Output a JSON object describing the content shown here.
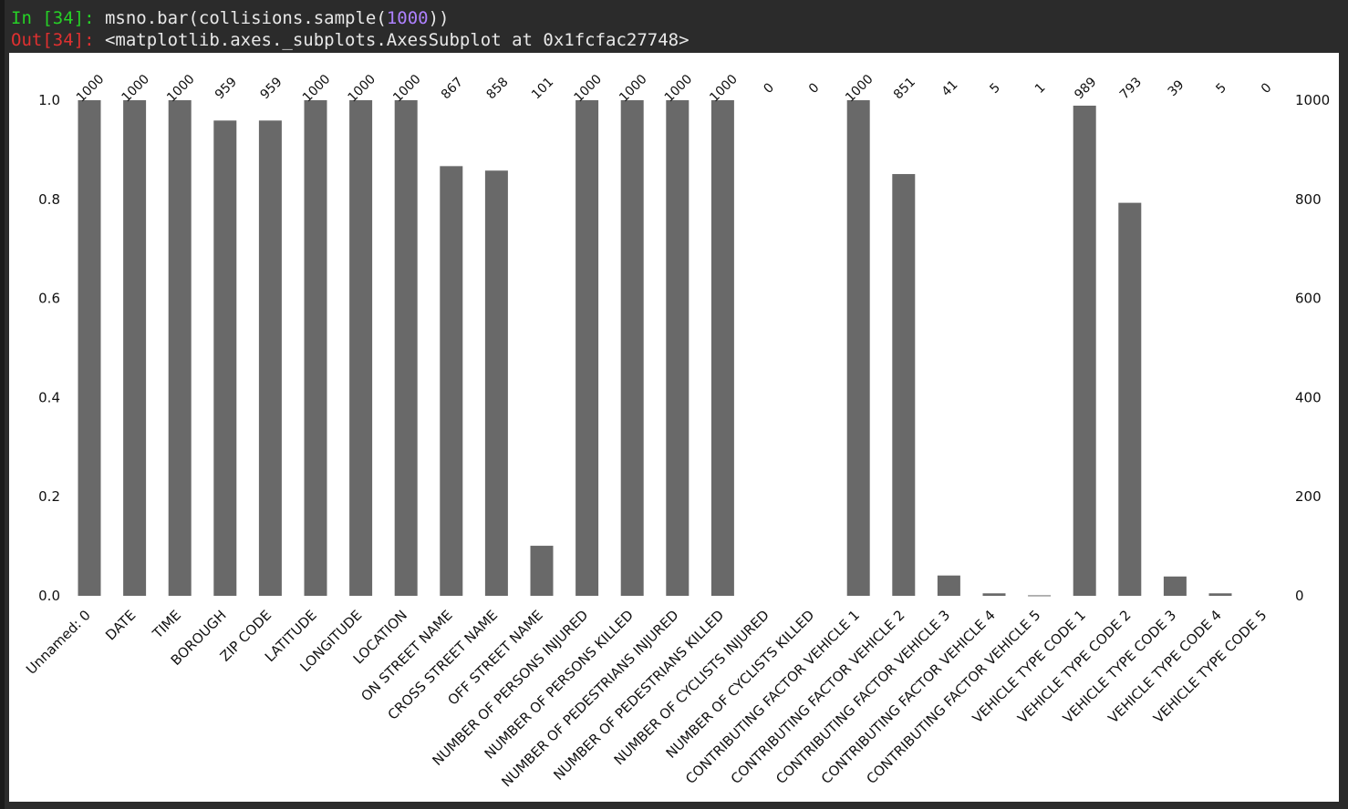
{
  "console": {
    "in_prompt": "In [34]:",
    "in_code_prefix": " msno.bar(collisions.sample(",
    "in_code_number": "1000",
    "in_code_suffix": "))",
    "out_prompt": "Out[34]:",
    "out_text": " <matplotlib.axes._subplots.AxesSubplot at 0x1fcfac27748>"
  },
  "colors": {
    "bar": "#696969",
    "background": "#2b2b2b",
    "prompt_in": "#26d126",
    "prompt_out": "#e03030",
    "number_literal": "#ae81ff"
  },
  "chart_data": {
    "type": "bar",
    "categories": [
      "Unnamed: 0",
      "DATE",
      "TIME",
      "BOROUGH",
      "ZIP CODE",
      "LATITUDE",
      "LONGITUDE",
      "LOCATION",
      "ON STREET NAME",
      "CROSS STREET NAME",
      "OFF STREET NAME",
      "NUMBER OF PERSONS INJURED",
      "NUMBER OF PERSONS KILLED",
      "NUMBER OF PEDESTRIANS INJURED",
      "NUMBER OF PEDESTRIANS KILLED",
      "NUMBER OF CYCLISTS INJURED",
      "NUMBER OF CYCLISTS KILLED",
      "CONTRIBUTING FACTOR VEHICLE 1",
      "CONTRIBUTING FACTOR VEHICLE 2",
      "CONTRIBUTING FACTOR VEHICLE 3",
      "CONTRIBUTING FACTOR VEHICLE 4",
      "CONTRIBUTING FACTOR VEHICLE 5",
      "VEHICLE TYPE CODE 1",
      "VEHICLE TYPE CODE 2",
      "VEHICLE TYPE CODE 3",
      "VEHICLE TYPE CODE 4",
      "VEHICLE TYPE CODE 5"
    ],
    "values": [
      1000,
      1000,
      1000,
      959,
      959,
      1000,
      1000,
      1000,
      867,
      858,
      101,
      1000,
      1000,
      1000,
      1000,
      0,
      0,
      1000,
      851,
      41,
      5,
      1,
      989,
      793,
      39,
      5,
      0
    ],
    "sample_size": 1000,
    "left_axis": {
      "ylim": [
        0,
        1.0
      ],
      "ticks": [
        "0.0",
        "0.2",
        "0.4",
        "0.6",
        "0.8",
        "1.0"
      ]
    },
    "right_axis": {
      "ylim": [
        0,
        1000
      ],
      "ticks": [
        "0",
        "200",
        "400",
        "600",
        "800",
        "1000"
      ]
    },
    "title": "",
    "xlabel": "",
    "ylabel": "",
    "grid": false,
    "legend": "none"
  }
}
